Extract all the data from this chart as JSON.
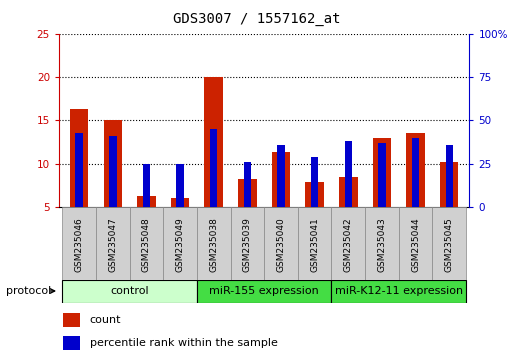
{
  "title": "GDS3007 / 1557162_at",
  "samples": [
    "GSM235046",
    "GSM235047",
    "GSM235048",
    "GSM235049",
    "GSM235038",
    "GSM235039",
    "GSM235040",
    "GSM235041",
    "GSM235042",
    "GSM235043",
    "GSM235044",
    "GSM235045"
  ],
  "count_values": [
    16.3,
    15.0,
    6.3,
    6.0,
    20.0,
    8.2,
    11.4,
    7.9,
    8.5,
    13.0,
    13.5,
    10.2
  ],
  "percentile_values": [
    43,
    41,
    25,
    25,
    45,
    26,
    36,
    29,
    38,
    37,
    40,
    36
  ],
  "ylim_left": [
    5,
    25
  ],
  "ylim_right": [
    0,
    100
  ],
  "yticks_left": [
    5,
    10,
    15,
    20,
    25
  ],
  "yticks_right": [
    0,
    25,
    50,
    75,
    100
  ],
  "ytick_labels_right": [
    "0",
    "25",
    "50",
    "75",
    "100%"
  ],
  "bar_color": "#cc2200",
  "percentile_color": "#0000cc",
  "bar_width": 0.55,
  "percentile_bar_width": 0.22,
  "group_configs": [
    {
      "label": "control",
      "start": 0,
      "end": 3,
      "color": "#ccffcc"
    },
    {
      "label": "miR-155 expression",
      "start": 4,
      "end": 7,
      "color": "#44dd44"
    },
    {
      "label": "miR-K12-11 expression",
      "start": 8,
      "end": 11,
      "color": "#44dd44"
    }
  ],
  "protocol_label": "protocol",
  "legend_count_label": "count",
  "legend_percentile_label": "percentile rank within the sample",
  "background_color": "#ffffff",
  "plot_bg_color": "#ffffff",
  "axis_color_left": "#cc0000",
  "axis_color_right": "#0000cc",
  "title_fontsize": 10,
  "tick_fontsize": 7.5,
  "label_fontsize": 8,
  "group_label_fontsize": 8,
  "sample_label_fontsize": 6.5,
  "sample_box_color": "#d0d0d0",
  "sample_box_edge": "#888888"
}
